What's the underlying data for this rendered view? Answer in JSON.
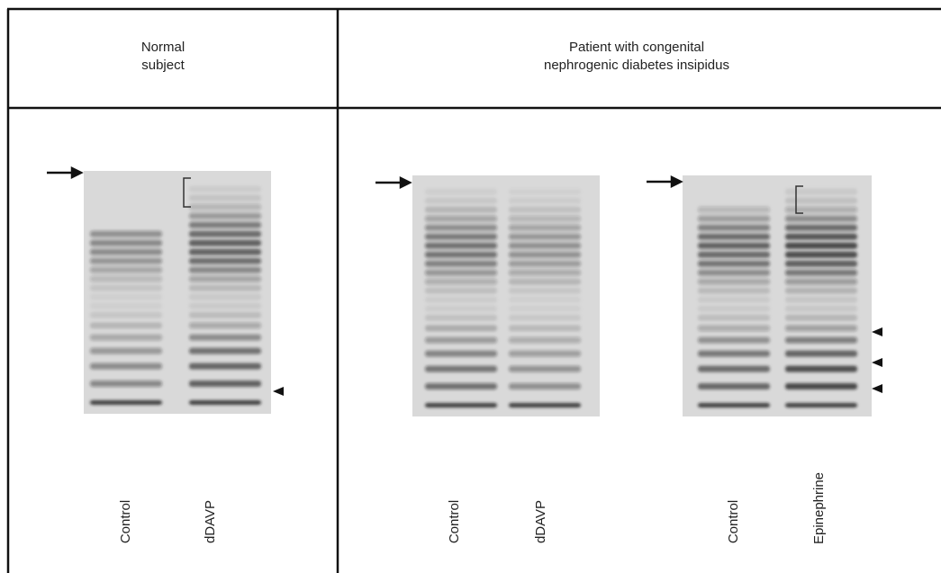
{
  "panels": [
    {
      "title": [
        "Normal",
        "subject"
      ],
      "lanes": [
        "Control",
        "dDAVP"
      ]
    },
    {
      "title": [
        "Patient with congenital",
        "nephrogenic diabetes insipidus"
      ],
      "lanes": [
        "Control",
        "dDAVP",
        "Control",
        "Epinephrine"
      ]
    }
  ]
}
